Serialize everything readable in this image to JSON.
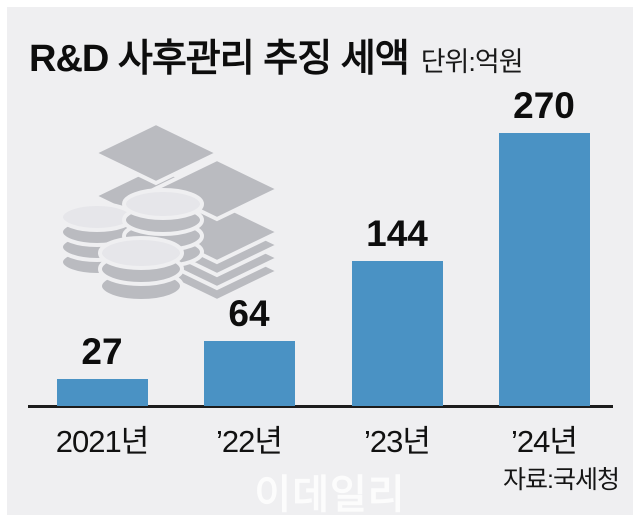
{
  "header": {
    "title": "R&D 사후관리 추징 세액",
    "unit": "단위:억원"
  },
  "chart_data": {
    "type": "bar",
    "title": "R&D 사후관리 추징 세액",
    "unit_label": "단위:억원",
    "categories": [
      "2021년",
      "’22년",
      "’23년",
      "’24년"
    ],
    "values": [
      27,
      64,
      144,
      270
    ],
    "ylim": [
      0,
      280
    ],
    "bar_color": "#4a92c4",
    "grid": false,
    "legend": false,
    "value_labels_position": "above-bars"
  },
  "footer": {
    "watermark": "이데일리",
    "source": "자료:국세청"
  },
  "colors": {
    "panel_background": "#efeff1",
    "page_background": "#ffffff",
    "bar": "#4a92c4",
    "axis": "#1c1c1c",
    "icon_gray": "#babbc0",
    "text": "#0d0d0d"
  },
  "icons": {
    "money": "money-stacks-icon"
  }
}
